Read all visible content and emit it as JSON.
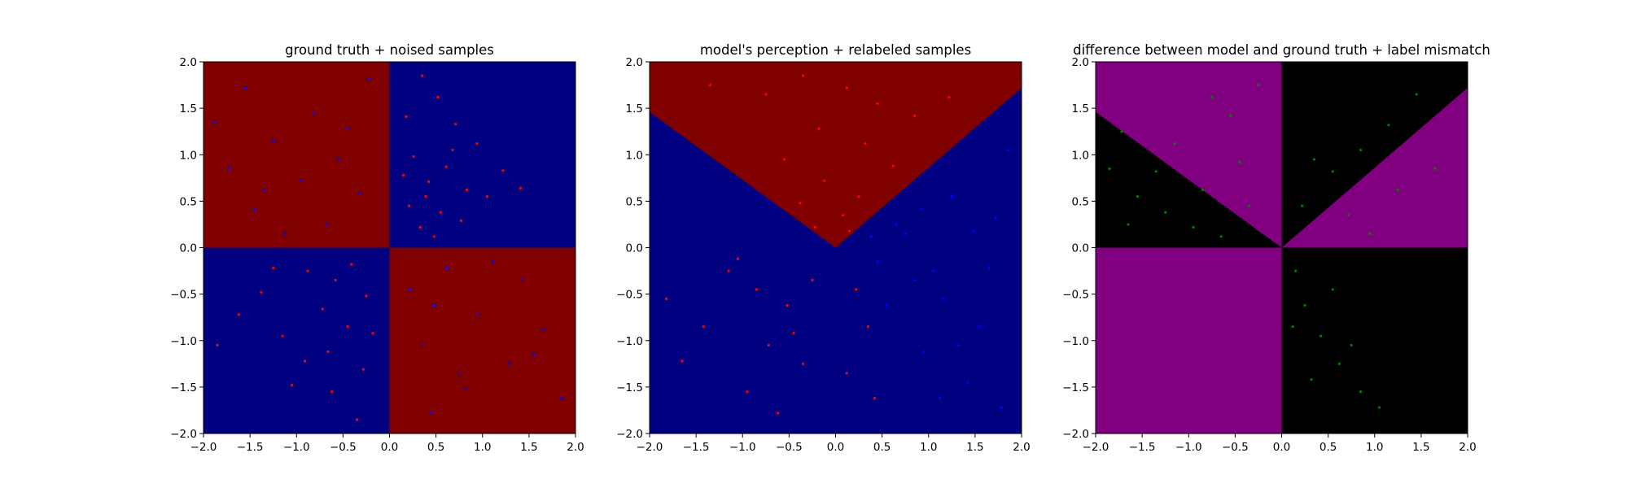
{
  "chart_data": [
    {
      "type": "scatter",
      "title": "ground truth + noised samples",
      "xlim": [
        -2.0,
        2.0
      ],
      "ylim": [
        -2.0,
        2.0
      ],
      "xticks": [
        "−2.0",
        "−1.5",
        "−1.0",
        "−0.5",
        "0.0",
        "0.5",
        "1.0",
        "1.5",
        "2.0"
      ],
      "yticks": [
        "−2.0",
        "−1.5",
        "−1.0",
        "−0.5",
        "0.0",
        "0.5",
        "1.0",
        "1.5",
        "2.0"
      ],
      "background": "checkerboard: red where x*y < 0, blue where x*y > 0",
      "regions": [
        {
          "label": "red",
          "color": "#800000",
          "polygon": [
            [
              -2,
              0
            ],
            [
              0,
              0
            ],
            [
              0,
              2
            ],
            [
              -2,
              2
            ]
          ]
        },
        {
          "label": "blue",
          "color": "#000080",
          "polygon": [
            [
              0,
              0
            ],
            [
              2,
              0
            ],
            [
              2,
              2
            ],
            [
              0,
              2
            ]
          ]
        },
        {
          "label": "blue",
          "color": "#000080",
          "polygon": [
            [
              -2,
              -2
            ],
            [
              0,
              -2
            ],
            [
              0,
              0
            ],
            [
              -2,
              0
            ]
          ]
        },
        {
          "label": "red",
          "color": "#800000",
          "polygon": [
            [
              0,
              -2
            ],
            [
              2,
              -2
            ],
            [
              2,
              0
            ],
            [
              0,
              0
            ]
          ]
        }
      ],
      "series": [
        {
          "color": "#ff0000",
          "points": [
            [
              0.35,
              1.85
            ],
            [
              0.52,
              1.62
            ],
            [
              0.18,
              1.41
            ],
            [
              0.71,
              1.33
            ],
            [
              0.94,
              1.12
            ],
            [
              0.26,
              0.98
            ],
            [
              0.61,
              0.87
            ],
            [
              0.42,
              0.71
            ],
            [
              0.83,
              0.62
            ],
            [
              1.05,
              0.55
            ],
            [
              0.21,
              0.45
            ],
            [
              0.55,
              0.38
            ],
            [
              0.77,
              0.29
            ],
            [
              0.33,
              0.22
            ],
            [
              0.48,
              0.12
            ],
            [
              1.22,
              0.83
            ],
            [
              1.41,
              0.64
            ],
            [
              0.15,
              0.78
            ],
            [
              0.68,
              1.05
            ],
            [
              0.39,
              0.55
            ],
            [
              -0.35,
              -1.85
            ],
            [
              -0.62,
              -1.55
            ],
            [
              -0.28,
              -1.31
            ],
            [
              -0.91,
              -1.22
            ],
            [
              -1.15,
              -0.95
            ],
            [
              -0.45,
              -0.85
            ],
            [
              -0.72,
              -0.66
            ],
            [
              -0.25,
              -0.52
            ],
            [
              -1.38,
              -0.48
            ],
            [
              -0.58,
              -0.35
            ],
            [
              -0.88,
              -0.25
            ],
            [
              -1.62,
              -0.72
            ],
            [
              -0.18,
              -0.92
            ],
            [
              -1.05,
              -1.48
            ],
            [
              -0.41,
              -0.18
            ],
            [
              -1.85,
              -1.05
            ],
            [
              -0.66,
              -1.12
            ],
            [
              -1.25,
              -0.22
            ]
          ]
        },
        {
          "color": "#0000ff",
          "points": [
            [
              -1.55,
              1.72
            ],
            [
              -0.82,
              1.45
            ],
            [
              -1.25,
              1.15
            ],
            [
              -0.45,
              1.28
            ],
            [
              -1.72,
              0.85
            ],
            [
              -0.95,
              0.72
            ],
            [
              -0.32,
              0.58
            ],
            [
              -1.45,
              0.41
            ],
            [
              -0.68,
              0.25
            ],
            [
              -1.12,
              0.15
            ],
            [
              -0.22,
              1.82
            ],
            [
              -1.88,
              1.35
            ],
            [
              -0.55,
              0.95
            ],
            [
              -1.35,
              0.62
            ],
            [
              0.45,
              -1.78
            ],
            [
              0.82,
              -1.52
            ],
            [
              1.28,
              -1.25
            ],
            [
              0.35,
              -1.05
            ],
            [
              1.65,
              -0.88
            ],
            [
              0.95,
              -0.72
            ],
            [
              0.22,
              -0.45
            ],
            [
              1.42,
              -0.35
            ],
            [
              0.62,
              -0.22
            ],
            [
              1.85,
              -1.62
            ],
            [
              1.12,
              -0.15
            ],
            [
              0.48,
              -0.62
            ],
            [
              1.55,
              -1.15
            ],
            [
              0.75,
              -1.35
            ]
          ]
        }
      ]
    },
    {
      "type": "scatter",
      "title": "model's perception + relabeled samples",
      "xlim": [
        -2.0,
        2.0
      ],
      "ylim": [
        -2.0,
        2.0
      ],
      "xticks": [
        "−2.0",
        "−1.5",
        "−1.0",
        "−0.5",
        "0.0",
        "0.5",
        "1.0",
        "1.5",
        "2.0"
      ],
      "yticks": [
        "−2.0",
        "−1.5",
        "−1.0",
        "−0.5",
        "0.0",
        "0.5",
        "1.0",
        "1.5",
        "2.0"
      ],
      "background": "V-shaped boundary: red above y = -0.73x (x<0) and y = 0.86x (x>0), blue elsewhere",
      "regions": [
        {
          "label": "blue",
          "color": "#000080",
          "polygon": [
            [
              -2,
              -2
            ],
            [
              2,
              -2
            ],
            [
              2,
              2
            ],
            [
              -2,
              2
            ]
          ]
        },
        {
          "label": "red",
          "color": "#800000",
          "polygon": [
            [
              -2,
              2
            ],
            [
              -2,
              1.46
            ],
            [
              0,
              0
            ],
            [
              2,
              1.72
            ],
            [
              2,
              2
            ]
          ]
        }
      ],
      "series": [
        {
          "color": "#ff0000",
          "points": [
            [
              -0.35,
              1.85
            ],
            [
              0.12,
              1.72
            ],
            [
              0.45,
              1.55
            ],
            [
              -0.75,
              1.65
            ],
            [
              0.85,
              1.42
            ],
            [
              -0.18,
              1.28
            ],
            [
              0.32,
              1.12
            ],
            [
              -0.55,
              0.95
            ],
            [
              0.62,
              0.88
            ],
            [
              -0.12,
              0.72
            ],
            [
              0.25,
              0.55
            ],
            [
              -0.38,
              0.48
            ],
            [
              0.08,
              0.35
            ],
            [
              -0.22,
              0.22
            ],
            [
              0.15,
              0.18
            ],
            [
              1.22,
              1.62
            ],
            [
              -1.35,
              1.75
            ],
            [
              -0.85,
              -0.45
            ],
            [
              -1.15,
              -0.25
            ],
            [
              -0.52,
              -0.62
            ],
            [
              -0.72,
              -1.05
            ],
            [
              -1.42,
              -0.85
            ],
            [
              -0.35,
              -1.25
            ],
            [
              -0.95,
              -1.55
            ],
            [
              -1.65,
              -1.22
            ],
            [
              -0.25,
              -0.35
            ],
            [
              -1.82,
              -0.55
            ],
            [
              -0.62,
              -1.78
            ],
            [
              -1.05,
              -0.12
            ],
            [
              -0.45,
              -0.92
            ],
            [
              0.22,
              -0.45
            ],
            [
              0.35,
              -0.85
            ],
            [
              0.12,
              -1.35
            ],
            [
              0.42,
              -1.62
            ]
          ]
        },
        {
          "color": "#0000ff",
          "points": [
            [
              0.65,
              0.25
            ],
            [
              0.85,
              -0.35
            ],
            [
              1.25,
              0.55
            ],
            [
              1.55,
              -0.85
            ],
            [
              0.95,
              -1.12
            ],
            [
              1.72,
              0.32
            ],
            [
              1.15,
              -0.55
            ],
            [
              0.45,
              -0.15
            ],
            [
              1.42,
              -1.45
            ],
            [
              0.75,
              0.15
            ],
            [
              1.85,
              1.05
            ],
            [
              1.05,
              -0.25
            ],
            [
              0.55,
              -0.62
            ],
            [
              1.65,
              -0.22
            ],
            [
              1.32,
              -1.05
            ],
            [
              0.92,
              0.42
            ],
            [
              1.48,
              0.18
            ],
            [
              0.38,
              0.12
            ],
            [
              1.78,
              -1.72
            ],
            [
              1.12,
              -1.62
            ]
          ]
        }
      ]
    },
    {
      "type": "scatter",
      "title": "difference between model and ground truth + label mismatch",
      "xlim": [
        -2.0,
        2.0
      ],
      "ylim": [
        -2.0,
        2.0
      ],
      "xticks": [
        "−2.0",
        "−1.5",
        "−1.0",
        "−0.5",
        "0.0",
        "0.5",
        "1.0",
        "1.5",
        "2.0"
      ],
      "yticks": [
        "−2.0",
        "−1.5",
        "−1.0",
        "−0.5",
        "0.0",
        "0.5",
        "1.0",
        "1.5",
        "2.0"
      ],
      "background": "purple where model and ground truth agree, black where they disagree",
      "regions": [
        {
          "label": "purple",
          "color": "#800080",
          "polygon": [
            [
              -2,
              -2
            ],
            [
              2,
              -2
            ],
            [
              2,
              2
            ],
            [
              -2,
              2
            ]
          ]
        },
        {
          "label": "black",
          "color": "#000000",
          "polygon": [
            [
              -2,
              0
            ],
            [
              0,
              0
            ],
            [
              -2,
              1.46
            ]
          ]
        },
        {
          "label": "black",
          "color": "#000000",
          "polygon": [
            [
              0,
              0
            ],
            [
              2,
              1.72
            ],
            [
              2,
              2
            ],
            [
              0,
              2
            ]
          ]
        },
        {
          "label": "black",
          "color": "#000000",
          "polygon": [
            [
              0,
              -2
            ],
            [
              2,
              -2
            ],
            [
              2,
              0
            ],
            [
              0,
              0
            ]
          ]
        }
      ],
      "series": [
        {
          "color": "#008000",
          "points": [
            [
              -1.85,
              0.85
            ],
            [
              -1.55,
              0.55
            ],
            [
              -1.25,
              0.38
            ],
            [
              -0.95,
              0.22
            ],
            [
              -1.65,
              0.25
            ],
            [
              -0.65,
              0.12
            ],
            [
              -1.35,
              0.82
            ],
            [
              -0.45,
              0.92
            ],
            [
              -0.85,
              0.62
            ],
            [
              -1.15,
              1.12
            ],
            [
              -0.55,
              1.42
            ],
            [
              -0.25,
              1.75
            ],
            [
              -0.75,
              1.62
            ],
            [
              -0.35,
              0.45
            ],
            [
              -1.72,
              1.25
            ],
            [
              0.22,
              0.45
            ],
            [
              0.55,
              0.82
            ],
            [
              0.85,
              1.05
            ],
            [
              1.15,
              1.32
            ],
            [
              1.45,
              1.65
            ],
            [
              0.35,
              0.95
            ],
            [
              0.72,
              0.35
            ],
            [
              1.25,
              0.62
            ],
            [
              1.65,
              0.85
            ],
            [
              0.95,
              0.15
            ],
            [
              0.15,
              -0.25
            ],
            [
              0.25,
              -0.62
            ],
            [
              0.42,
              -0.95
            ],
            [
              0.62,
              -1.25
            ],
            [
              0.85,
              -1.55
            ],
            [
              0.32,
              -1.42
            ],
            [
              0.12,
              -0.85
            ],
            [
              0.55,
              -0.45
            ],
            [
              1.05,
              -1.72
            ],
            [
              0.75,
              -1.05
            ]
          ]
        }
      ]
    }
  ]
}
